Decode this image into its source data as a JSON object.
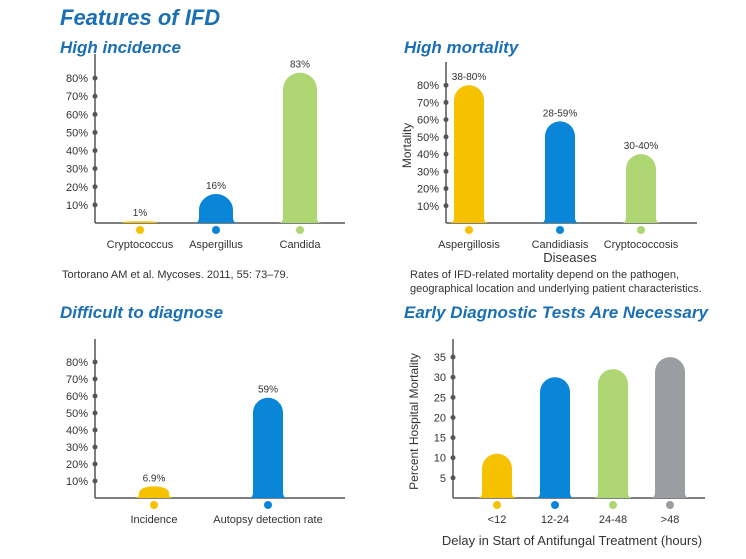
{
  "main_title": "Features of IFD",
  "panels": [
    {
      "title": "High incidence",
      "note": ""
    },
    {
      "title": "High mortality",
      "note": "Rates of IFD-related mortality depend on the pathogen, geographical location and underlying patient characteristics."
    },
    {
      "title": "Difficult  to  diagnose",
      "note": ""
    },
    {
      "title": "Early Diagnostic Tests Are Necessary",
      "note": ""
    }
  ],
  "citation": "Tortorano AM et al. Mycoses. 2011, 55: 73–79.",
  "colors": {
    "yellow": "#f6c200",
    "blue": "#0a86d8",
    "green": "#aed672",
    "gray": "#9a9da1",
    "axis": "#555555",
    "title": "#1b6fb5"
  },
  "chart_data": [
    {
      "type": "bar",
      "title": "High incidence",
      "categories": [
        "Cryptococcus",
        "Aspergillus",
        "Candida"
      ],
      "values": [
        1,
        16,
        83
      ],
      "value_labels": [
        "1%",
        "16%",
        "83%"
      ],
      "colors": [
        "#f6c200",
        "#0a86d8",
        "#aed672"
      ],
      "yticks": [
        "10%",
        "20%",
        "30%",
        "40%",
        "50%",
        "60%",
        "70%",
        "80%"
      ],
      "ylim": [
        0,
        90
      ],
      "xlabel": "",
      "ylabel": ""
    },
    {
      "type": "bar",
      "title": "High mortality",
      "categories": [
        "Aspergillosis",
        "Candidiasis",
        "Cryptococcosis"
      ],
      "values": [
        80,
        59,
        40
      ],
      "value_labels": [
        "38-80%",
        "28-59%",
        "30-40%"
      ],
      "colors": [
        "#f6c200",
        "#0a86d8",
        "#aed672"
      ],
      "yticks": [
        "10%",
        "20%",
        "30%",
        "40%",
        "50%",
        "60%",
        "70%",
        "80%"
      ],
      "ylim": [
        0,
        90
      ],
      "xlabel": "Diseases",
      "ylabel": "Mortality"
    },
    {
      "type": "bar",
      "title": "Difficult  to  diagnose",
      "categories": [
        "Incidence",
        "Autopsy detection rate"
      ],
      "values": [
        6.9,
        59
      ],
      "value_labels": [
        "6.9%",
        "59%"
      ],
      "colors": [
        "#f6c200",
        "#0a86d8"
      ],
      "yticks": [
        "10%",
        "20%",
        "30%",
        "40%",
        "50%",
        "60%",
        "70%",
        "80%"
      ],
      "ylim": [
        0,
        90
      ],
      "xlabel": "",
      "ylabel": ""
    },
    {
      "type": "bar",
      "title": "Early Diagnostic Tests Are Necessary",
      "categories": [
        "<12",
        "12-24",
        "24-48",
        ">48"
      ],
      "values": [
        11,
        30,
        32,
        35
      ],
      "value_labels": [
        "",
        "",
        "",
        ""
      ],
      "colors": [
        "#f6c200",
        "#0a86d8",
        "#aed672",
        "#9a9da1"
      ],
      "yticks": [
        "5",
        "10",
        "15",
        "20",
        "25",
        "30",
        "35"
      ],
      "ylim": [
        0,
        38
      ],
      "xlabel": "Delay in Start of Antifungal Treatment (hours)",
      "ylabel": "Percent Hospital Mortality"
    }
  ]
}
